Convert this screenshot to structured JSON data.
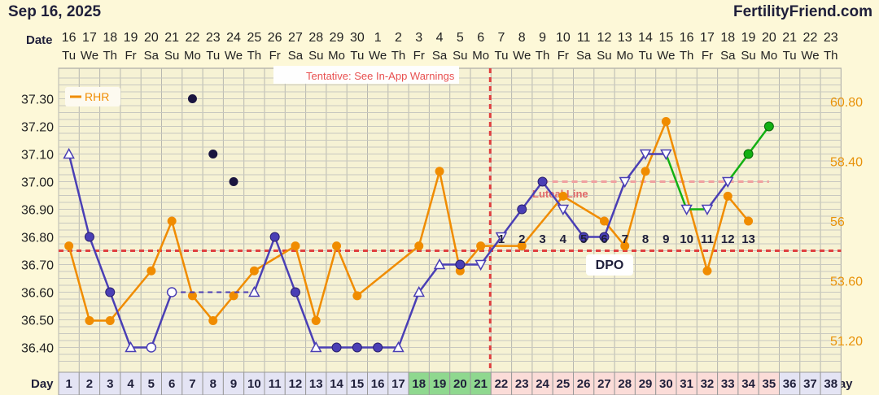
{
  "header": {
    "date": "Sep 16, 2025",
    "brand": "FertilityFriend.com"
  },
  "labels": {
    "date_row": "Date",
    "day_row": "Day",
    "dpo": "DPO"
  },
  "warning": "Tentative: See In-App Warnings",
  "coverline_label": "Luteal Line",
  "legend": {
    "rhr": "RHR"
  },
  "colors": {
    "temp": "#4a3fb5",
    "rhr": "#f08c00",
    "green": "#12b012",
    "red": "#e04040"
  },
  "chart_data": {
    "type": "line",
    "calendar_dates": [
      "16",
      "17",
      "18",
      "19",
      "20",
      "21",
      "22",
      "23",
      "24",
      "25",
      "26",
      "27",
      "28",
      "29",
      "30",
      "1",
      "2",
      "3",
      "4",
      "5",
      "6",
      "7",
      "8",
      "9",
      "10",
      "11",
      "12",
      "13",
      "14",
      "15",
      "16",
      "17",
      "18",
      "19",
      "20",
      "21",
      "22",
      "23"
    ],
    "weekdays": [
      "Tu",
      "We",
      "Th",
      "Fr",
      "Sa",
      "Su",
      "Mo",
      "Tu",
      "We",
      "Th",
      "Fr",
      "Sa",
      "Su",
      "Mo",
      "Tu",
      "We",
      "Th",
      "Fr",
      "Sa",
      "Su",
      "Mo",
      "Tu",
      "We",
      "Th",
      "Fr",
      "Sa",
      "Su",
      "Mo",
      "Tu",
      "We",
      "Th",
      "Fr",
      "Sa",
      "Su",
      "Mo",
      "Tu",
      "We",
      "Th"
    ],
    "cycle_days": [
      "1",
      "2",
      "3",
      "4",
      "5",
      "6",
      "7",
      "8",
      "9",
      "10",
      "11",
      "12",
      "13",
      "14",
      "15",
      "16",
      "17",
      "18",
      "19",
      "20",
      "21",
      "22",
      "23",
      "24",
      "25",
      "26",
      "27",
      "28",
      "29",
      "30",
      "31",
      "32",
      "33",
      "34",
      "35",
      "36",
      "37",
      "38"
    ],
    "y_ticks": [
      "37.30",
      "37.20",
      "37.10",
      "37.00",
      "36.90",
      "36.80",
      "36.70",
      "36.60",
      "36.50",
      "36.40"
    ],
    "rhr_ticks": [
      "60.80",
      "58.40",
      "56",
      "53.60",
      "51.20"
    ],
    "ylim": [
      36.33,
      37.38
    ],
    "rhr_lim": [
      49.0,
      62.0
    ],
    "ovulation_day": 21,
    "coverline": 36.75,
    "luteal_line": 37.0,
    "temperature": [
      {
        "day": 1,
        "value": 37.1,
        "marker": "triangle-up"
      },
      {
        "day": 2,
        "value": 36.8,
        "marker": "filled"
      },
      {
        "day": 3,
        "value": 36.6,
        "marker": "filled"
      },
      {
        "day": 4,
        "value": 36.4,
        "marker": "triangle-up"
      },
      {
        "day": 5,
        "value": 36.4,
        "marker": "open"
      },
      {
        "day": 6,
        "value": 36.6,
        "marker": "open"
      },
      {
        "day": 10,
        "value": 36.6,
        "marker": "triangle-up"
      },
      {
        "day": 11,
        "value": 36.8,
        "marker": "filled"
      },
      {
        "day": 12,
        "value": 36.6,
        "marker": "filled"
      },
      {
        "day": 13,
        "value": 36.4,
        "marker": "triangle-up"
      },
      {
        "day": 14,
        "value": 36.4,
        "marker": "filled"
      },
      {
        "day": 15,
        "value": 36.4,
        "marker": "filled"
      },
      {
        "day": 16,
        "value": 36.4,
        "marker": "filled"
      },
      {
        "day": 17,
        "value": 36.4,
        "marker": "triangle-up"
      },
      {
        "day": 18,
        "value": 36.6,
        "marker": "triangle-up"
      },
      {
        "day": 19,
        "value": 36.7,
        "marker": "triangle-up"
      },
      {
        "day": 20,
        "value": 36.7,
        "marker": "filled"
      },
      {
        "day": 21,
        "value": 36.7,
        "marker": "triangle-down"
      },
      {
        "day": 22,
        "value": 36.8,
        "marker": "triangle-down"
      },
      {
        "day": 23,
        "value": 36.9,
        "marker": "filled"
      },
      {
        "day": 24,
        "value": 37.0,
        "marker": "filled"
      },
      {
        "day": 25,
        "value": 36.9,
        "marker": "triangle-down"
      },
      {
        "day": 26,
        "value": 36.8,
        "marker": "filled"
      },
      {
        "day": 27,
        "value": 36.8,
        "marker": "filled"
      },
      {
        "day": 28,
        "value": 37.0,
        "marker": "triangle-down"
      },
      {
        "day": 29,
        "value": 37.1,
        "marker": "triangle-down"
      },
      {
        "day": 30,
        "value": 37.1,
        "marker": "triangle-down"
      },
      {
        "day": 31,
        "value": 36.9,
        "marker": "triangle-down"
      },
      {
        "day": 32,
        "value": 36.9,
        "marker": "triangle-down"
      },
      {
        "day": 33,
        "value": 37.0,
        "marker": "triangle-down"
      },
      {
        "day": 34,
        "value": 37.1,
        "marker": "green"
      },
      {
        "day": 35,
        "value": 37.2,
        "marker": "green"
      }
    ],
    "discarded_temps": [
      {
        "day": 7,
        "value": 37.3
      },
      {
        "day": 8,
        "value": 37.1
      },
      {
        "day": 9,
        "value": 37.0
      }
    ],
    "rhr": [
      {
        "day": 1,
        "value": 55
      },
      {
        "day": 2,
        "value": 52
      },
      {
        "day": 3,
        "value": 52
      },
      {
        "day": 5,
        "value": 54
      },
      {
        "day": 6,
        "value": 56
      },
      {
        "day": 7,
        "value": 53
      },
      {
        "day": 8,
        "value": 52
      },
      {
        "day": 9,
        "value": 53
      },
      {
        "day": 10,
        "value": 54
      },
      {
        "day": 12,
        "value": 55
      },
      {
        "day": 13,
        "value": 52
      },
      {
        "day": 14,
        "value": 55
      },
      {
        "day": 15,
        "value": 53
      },
      {
        "day": 18,
        "value": 55
      },
      {
        "day": 19,
        "value": 58
      },
      {
        "day": 20,
        "value": 54
      },
      {
        "day": 21,
        "value": 55
      },
      {
        "day": 23,
        "value": 55
      },
      {
        "day": 25,
        "value": 57
      },
      {
        "day": 27,
        "value": 56
      },
      {
        "day": 28,
        "value": 55
      },
      {
        "day": 29,
        "value": 58
      },
      {
        "day": 30,
        "value": 60
      },
      {
        "day": 32,
        "value": 54
      },
      {
        "day": 33,
        "value": 57
      },
      {
        "day": 34,
        "value": 56
      }
    ],
    "dpo_numbers": [
      {
        "day": 22,
        "n": "1"
      },
      {
        "day": 23,
        "n": "2"
      },
      {
        "day": 24,
        "n": "3"
      },
      {
        "day": 25,
        "n": "4"
      },
      {
        "day": 26,
        "n": "5"
      },
      {
        "day": 27,
        "n": "6"
      },
      {
        "day": 28,
        "n": "7"
      },
      {
        "day": 29,
        "n": "8"
      },
      {
        "day": 30,
        "n": "9"
      },
      {
        "day": 31,
        "n": "10"
      },
      {
        "day": 32,
        "n": "11"
      },
      {
        "day": 33,
        "n": "12"
      },
      {
        "day": 34,
        "n": "13"
      }
    ],
    "day_cell_colors": {
      "default": "#e4e4f4",
      "green": [
        "18",
        "19",
        "20",
        "21"
      ],
      "pink": [
        "22",
        "23",
        "24",
        "25",
        "26",
        "27",
        "28",
        "29",
        "30",
        "31",
        "32",
        "33",
        "34",
        "35"
      ]
    }
  }
}
